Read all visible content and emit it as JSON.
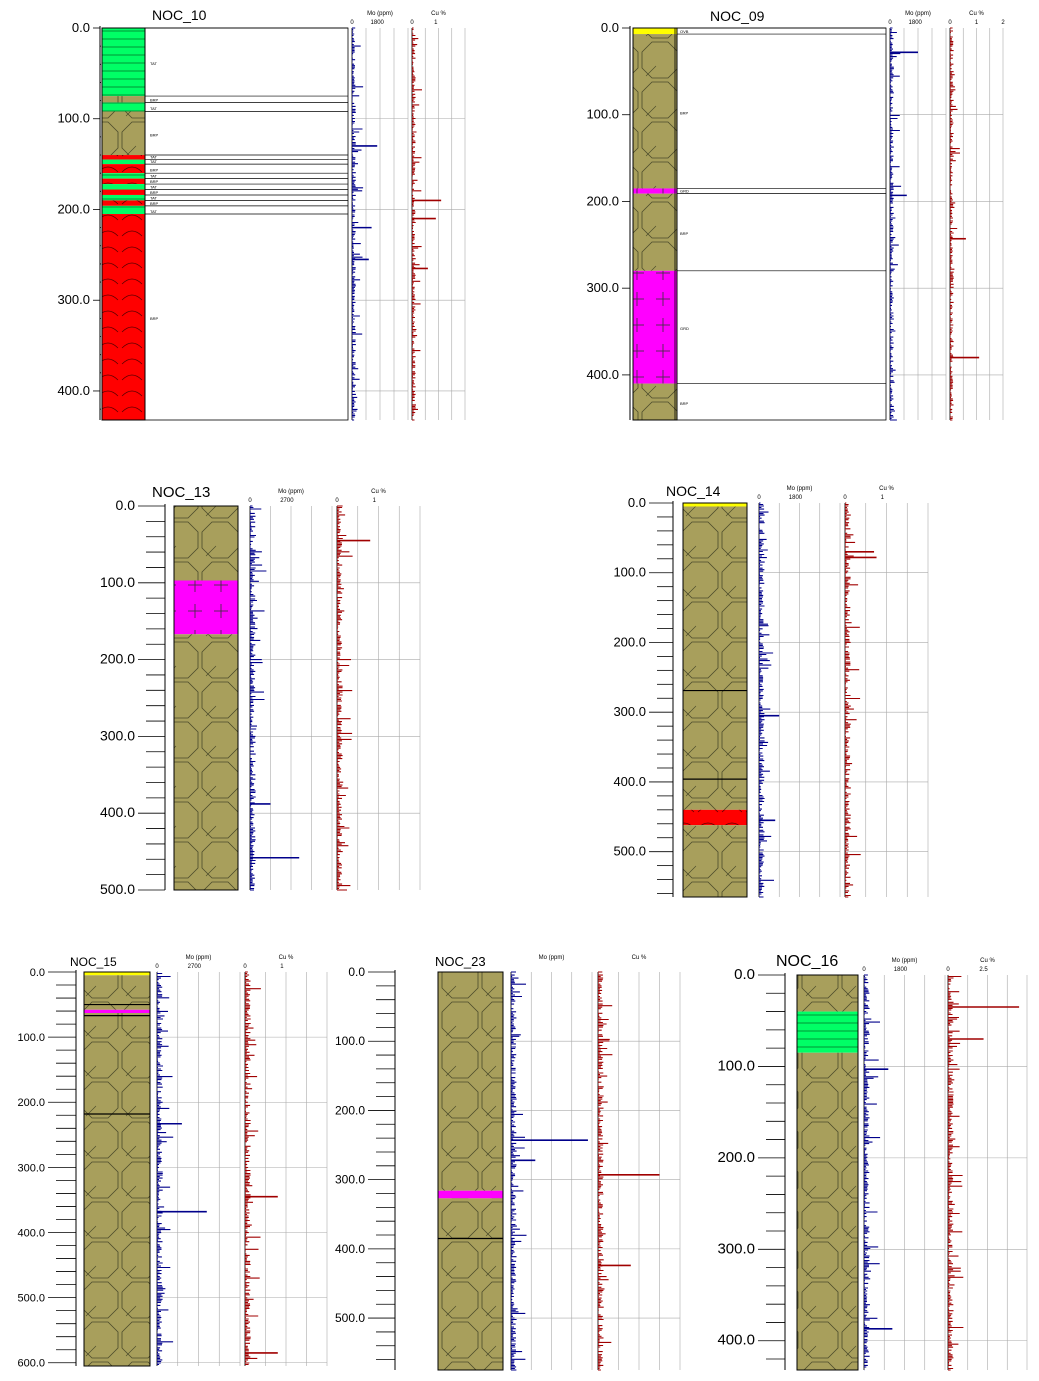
{
  "colors": {
    "porphyry": "#a89f5c",
    "granite": "#ff00ff",
    "andesite": "#ff0000",
    "sediment": "#00ff66",
    "cover": "#ffff00",
    "mo_trace": "#00008b",
    "cu_trace": "#a00000",
    "contact": "#000000",
    "grid": "#aaaaaa"
  },
  "icons": {
    "porphyry": "octagon-pattern",
    "granite": "cross-pattern",
    "andesite": "arc-pattern",
    "sediment": "hline-pattern"
  },
  "chart_data": [
    {
      "type": "strip-log",
      "title": "NOC_10",
      "depth_labels": [
        "0.0",
        "100.0",
        "200.0",
        "300.0",
        "400.0"
      ],
      "depth_range": [
        0,
        432
      ],
      "mo_header": "Mo (ppm)",
      "mo_scale": [
        "0",
        "1800"
      ],
      "cu_header": "Cu %",
      "cu_scale": [
        "0",
        "1"
      ],
      "intervals": [
        {
          "from": 0,
          "to": 75,
          "rock": "sediment",
          "code": "TAT"
        },
        {
          "from": 75,
          "to": 82,
          "rock": "porphyry",
          "code": "BRP"
        },
        {
          "from": 82,
          "to": 92,
          "rock": "sediment",
          "code": "TAT"
        },
        {
          "from": 92,
          "to": 140,
          "rock": "porphyry",
          "code": "BRP"
        },
        {
          "from": 140,
          "to": 145,
          "rock": "andesite",
          "code": "TAT"
        },
        {
          "from": 145,
          "to": 150,
          "rock": "sediment",
          "code": "TAT"
        },
        {
          "from": 150,
          "to": 160,
          "rock": "andesite",
          "code": "BRP"
        },
        {
          "from": 160,
          "to": 166,
          "rock": "sediment",
          "code": "TAT"
        },
        {
          "from": 166,
          "to": 172,
          "rock": "andesite",
          "code": "BRP"
        },
        {
          "from": 172,
          "to": 178,
          "rock": "sediment",
          "code": "TAT"
        },
        {
          "from": 178,
          "to": 184,
          "rock": "andesite",
          "code": "BRP"
        },
        {
          "from": 184,
          "to": 190,
          "rock": "sediment",
          "code": "TAT"
        },
        {
          "from": 190,
          "to": 196,
          "rock": "andesite",
          "code": "BRP"
        },
        {
          "from": 196,
          "to": 205,
          "rock": "sediment",
          "code": "TAT"
        },
        {
          "from": 205,
          "to": 432,
          "rock": "andesite",
          "code": "BRP"
        }
      ],
      "contacts": [],
      "mo_spikes": [
        {
          "depth": 130,
          "value": 0.45
        },
        {
          "depth": 220,
          "value": 0.35
        },
        {
          "depth": 255,
          "value": 0.3
        }
      ],
      "cu_spikes": [
        {
          "depth": 190,
          "value": 0.55
        },
        {
          "depth": 210,
          "value": 0.45
        },
        {
          "depth": 265,
          "value": 0.3
        }
      ]
    },
    {
      "type": "strip-log",
      "title": "NOC_09",
      "depth_labels": [
        "0.0",
        "100.0",
        "200.0",
        "300.0",
        "400.0"
      ],
      "depth_range": [
        0,
        452
      ],
      "mo_header": "Mo (ppm)",
      "mo_scale": [
        "0",
        "1800"
      ],
      "cu_header": "Cu %",
      "cu_scale": [
        "0",
        "1",
        "2"
      ],
      "intervals": [
        {
          "from": 0,
          "to": 7,
          "rock": "cover",
          "code": "OVB"
        },
        {
          "from": 7,
          "to": 185,
          "rock": "porphyry",
          "code": "BRP"
        },
        {
          "from": 185,
          "to": 191,
          "rock": "granite",
          "code": "GRD"
        },
        {
          "from": 191,
          "to": 280,
          "rock": "porphyry",
          "code": "BRP"
        },
        {
          "from": 280,
          "to": 410,
          "rock": "granite",
          "code": "GRD"
        },
        {
          "from": 410,
          "to": 452,
          "rock": "porphyry",
          "code": "BRP"
        }
      ],
      "contacts": [],
      "mo_spikes": [
        {
          "depth": 28,
          "value": 0.5
        },
        {
          "depth": 193,
          "value": 0.3
        }
      ],
      "cu_spikes": [
        {
          "depth": 243,
          "value": 0.3
        },
        {
          "depth": 380,
          "value": 0.55
        }
      ]
    },
    {
      "type": "strip-log",
      "title": "NOC_13",
      "depth_labels": [
        "0.0",
        "100.0",
        "200.0",
        "300.0",
        "400.0",
        "500.0"
      ],
      "depth_range": [
        0,
        500
      ],
      "mo_header": "Mo (ppm)",
      "mo_scale": [
        "0",
        "2700"
      ],
      "cu_header": "Cu %",
      "cu_scale": [
        "0",
        "1"
      ],
      "intervals": [
        {
          "from": 0,
          "to": 97,
          "rock": "porphyry",
          "code": ""
        },
        {
          "from": 97,
          "to": 167,
          "rock": "granite",
          "code": ""
        },
        {
          "from": 167,
          "to": 500,
          "rock": "porphyry",
          "code": ""
        }
      ],
      "contacts": [],
      "mo_spikes": [
        {
          "depth": 458,
          "value": 0.6
        },
        {
          "depth": 388,
          "value": 0.25
        }
      ],
      "cu_spikes": [
        {
          "depth": 45,
          "value": 0.4
        }
      ]
    },
    {
      "type": "strip-log",
      "title": "NOC_14",
      "depth_labels": [
        "0.0",
        "100.0",
        "200.0",
        "300.0",
        "400.0",
        "500.0"
      ],
      "depth_range": [
        0,
        565
      ],
      "mo_header": "Mo (ppm)",
      "mo_scale": [
        "0",
        "1800"
      ],
      "cu_header": "Cu %",
      "cu_scale": [
        "0",
        "1"
      ],
      "intervals": [
        {
          "from": 0,
          "to": 5,
          "rock": "cover",
          "code": ""
        },
        {
          "from": 5,
          "to": 440,
          "rock": "porphyry",
          "code": ""
        },
        {
          "from": 440,
          "to": 462,
          "rock": "andesite",
          "code": ""
        },
        {
          "from": 462,
          "to": 565,
          "rock": "porphyry",
          "code": ""
        }
      ],
      "contacts": [
        269,
        396
      ],
      "mo_spikes": [
        {
          "depth": 305,
          "value": 0.25
        },
        {
          "depth": 455,
          "value": 0.2
        }
      ],
      "cu_spikes": [
        {
          "depth": 70,
          "value": 0.35
        },
        {
          "depth": 78,
          "value": 0.38
        }
      ]
    },
    {
      "type": "strip-log",
      "title": "NOC_15",
      "depth_labels": [
        "0.0",
        "100.0",
        "200.0",
        "300.0",
        "400.0",
        "500.0",
        "600.0"
      ],
      "depth_range": [
        0,
        605
      ],
      "mo_header": "Mo (ppm)",
      "mo_scale": [
        "0",
        "2700"
      ],
      "cu_header": "Cu %",
      "cu_scale": [
        "0",
        "1"
      ],
      "intervals": [
        {
          "from": 0,
          "to": 5,
          "rock": "cover",
          "code": ""
        },
        {
          "from": 5,
          "to": 58,
          "rock": "porphyry",
          "code": ""
        },
        {
          "from": 58,
          "to": 63,
          "rock": "granite",
          "code": ""
        },
        {
          "from": 63,
          "to": 605,
          "rock": "porphyry",
          "code": ""
        }
      ],
      "contacts": [
        50,
        67,
        218
      ],
      "mo_spikes": [
        {
          "depth": 368,
          "value": 0.6
        },
        {
          "depth": 233,
          "value": 0.3
        }
      ],
      "cu_spikes": [
        {
          "depth": 345,
          "value": 0.4
        },
        {
          "depth": 585,
          "value": 0.4
        }
      ]
    },
    {
      "type": "strip-log",
      "title": "NOC_23",
      "depth_labels": [
        "0.0",
        "100.0",
        "200.0",
        "300.0",
        "400.0",
        "500.0"
      ],
      "depth_range": [
        0,
        575
      ],
      "mo_header": "Mo (ppm)",
      "mo_scale": [],
      "cu_header": "Cu %",
      "cu_scale": [],
      "intervals": [
        {
          "from": 0,
          "to": 316,
          "rock": "porphyry",
          "code": ""
        },
        {
          "from": 316,
          "to": 327,
          "rock": "granite",
          "code": ""
        },
        {
          "from": 327,
          "to": 575,
          "rock": "porphyry",
          "code": ""
        }
      ],
      "contacts": [
        385
      ],
      "mo_spikes": [
        {
          "depth": 243,
          "value": 0.95
        },
        {
          "depth": 272,
          "value": 0.3
        }
      ],
      "cu_spikes": [
        {
          "depth": 293,
          "value": 0.75
        },
        {
          "depth": 424,
          "value": 0.4
        }
      ]
    },
    {
      "type": "strip-log",
      "title": "NOC_16",
      "depth_labels": [
        "0.0",
        "100.0",
        "200.0",
        "300.0",
        "400.0"
      ],
      "depth_range": [
        0,
        432
      ],
      "mo_header": "Mo (ppm)",
      "mo_scale": [
        "0",
        "1800"
      ],
      "cu_header": "Cu %",
      "cu_scale": [
        "0",
        "2.5"
      ],
      "intervals": [
        {
          "from": 0,
          "to": 40,
          "rock": "porphyry",
          "code": ""
        },
        {
          "from": 40,
          "to": 85,
          "rock": "sediment",
          "code": ""
        },
        {
          "from": 85,
          "to": 432,
          "rock": "porphyry",
          "code": ""
        }
      ],
      "contacts": [],
      "mo_spikes": [
        {
          "depth": 103,
          "value": 0.3
        },
        {
          "depth": 387,
          "value": 0.35
        }
      ],
      "cu_spikes": [
        {
          "depth": 35,
          "value": 0.9
        },
        {
          "depth": 70,
          "value": 0.45
        }
      ]
    }
  ]
}
